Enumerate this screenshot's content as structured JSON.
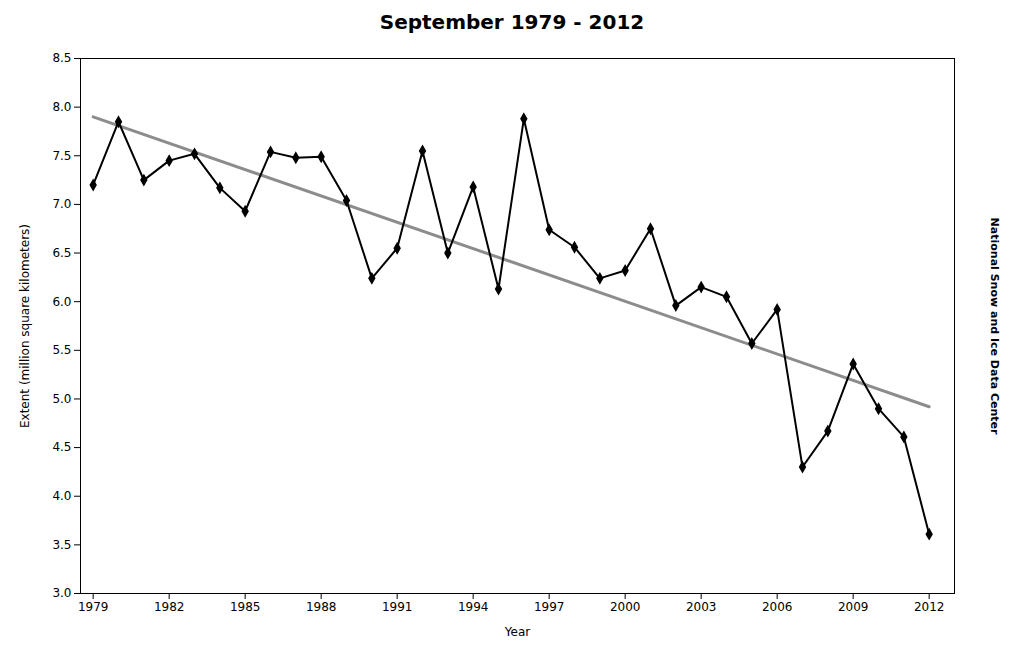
{
  "chart_data": {
    "type": "line",
    "title": "September 1979 - 2012",
    "xlabel": "Year",
    "ylabel": "Extent (million square kilometers)",
    "x": [
      1979,
      1980,
      1981,
      1982,
      1983,
      1984,
      1985,
      1986,
      1987,
      1988,
      1989,
      1990,
      1991,
      1992,
      1993,
      1994,
      1995,
      1996,
      1997,
      1998,
      1999,
      2000,
      2001,
      2002,
      2003,
      2004,
      2005,
      2006,
      2007,
      2008,
      2009,
      2010,
      2011,
      2012
    ],
    "values": [
      7.2,
      7.85,
      7.25,
      7.45,
      7.52,
      7.17,
      6.93,
      7.54,
      7.48,
      7.49,
      7.04,
      6.24,
      6.55,
      7.55,
      6.5,
      7.18,
      6.13,
      7.88,
      6.74,
      6.56,
      6.24,
      6.32,
      6.75,
      5.96,
      6.15,
      6.05,
      5.57,
      5.92,
      4.3,
      4.67,
      5.36,
      4.9,
      4.61,
      3.61
    ],
    "marker": "diamond",
    "trend": {
      "x": [
        1979,
        2012
      ],
      "values": [
        7.9,
        4.92
      ]
    },
    "annotations": [
      "National Snow and Ice Data Center"
    ],
    "xlim": [
      1978.5,
      2013.0
    ],
    "ylim": [
      3.0,
      8.5
    ],
    "xticks": [
      1979,
      1982,
      1985,
      1988,
      1991,
      1994,
      1997,
      2000,
      2003,
      2006,
      2009,
      2012
    ],
    "yticks": [
      {
        "value": 3.0,
        "label": "3.0"
      },
      3.5,
      {
        "value": 4.0,
        "label": "4.0"
      },
      4.5,
      {
        "value": 5.0,
        "label": "5.0"
      },
      5.5,
      {
        "value": 6.0,
        "label": "6.0"
      },
      6.5,
      {
        "value": 7.0,
        "label": "7.0"
      },
      7.5,
      {
        "value": 8.0,
        "label": "8.0"
      },
      8.5
    ],
    "grid": false
  }
}
